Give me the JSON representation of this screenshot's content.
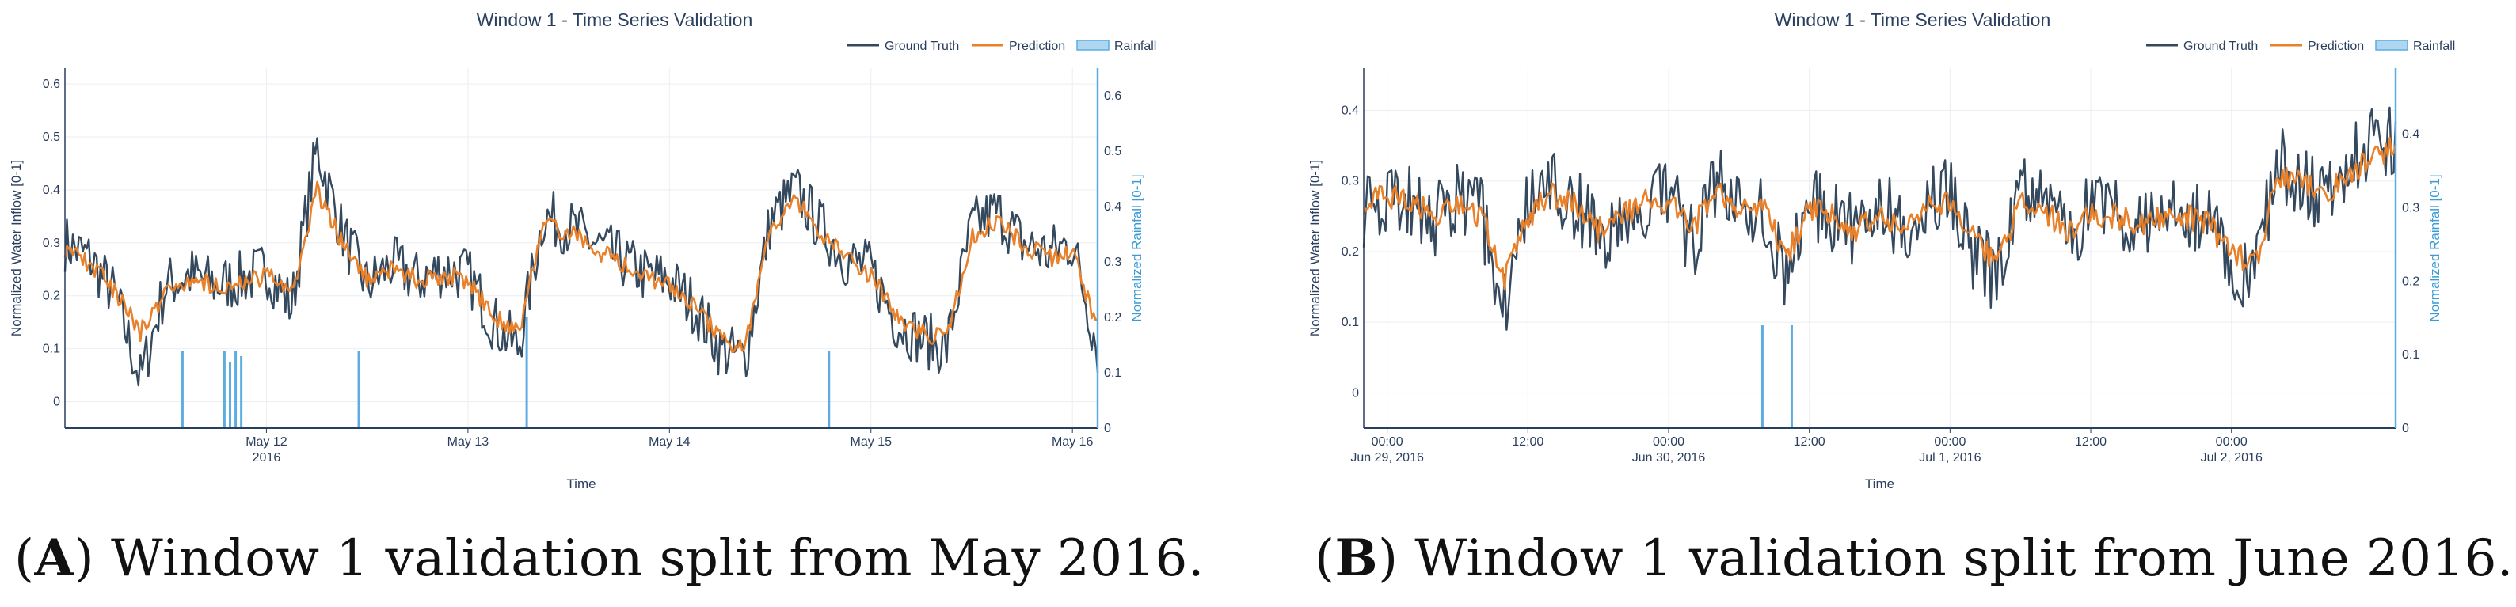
{
  "captions": [
    {
      "letter": "A",
      "text": ") Window 1 validation split from May 2016."
    },
    {
      "letter": "B",
      "text": ") Window 1 validation split from June 2016."
    }
  ],
  "colors": {
    "ground_truth": "#34495e",
    "prediction": "#e8812a",
    "rainfall": "#5dade2",
    "grid": "#ebeef3",
    "axis": "#2a3f5f"
  },
  "chart_data": [
    {
      "type": "line",
      "title": "Window 1 - Time Series Validation",
      "xlabel": "Time",
      "ylabel": "Normalized Water Inflow [0-1]",
      "y2label": "Normalized Rainfall [0-1]",
      "xlim": [
        "2016-05-11 00:00",
        "2016-05-16 03:00"
      ],
      "ylim": [
        -0.05,
        0.63
      ],
      "y2lim": [
        0,
        0.65
      ],
      "yticks": [
        "0",
        "0.1",
        "0.2",
        "0.3",
        "0.4",
        "0.5",
        "0.6"
      ],
      "y2ticks": [
        "0",
        "0.1",
        "0.2",
        "0.3",
        "0.4",
        "0.5",
        "0.6"
      ],
      "xticks": [
        {
          "x": "2016-05-12 00:00",
          "label": "May 12",
          "sub": "2016"
        },
        {
          "x": "2016-05-13 00:00",
          "label": "May 13",
          "sub": ""
        },
        {
          "x": "2016-05-14 00:00",
          "label": "May 14",
          "sub": ""
        },
        {
          "x": "2016-05-15 00:00",
          "label": "May 15",
          "sub": ""
        },
        {
          "x": "2016-05-16 00:00",
          "label": "May 16",
          "sub": ""
        }
      ],
      "legend": [
        "Ground Truth",
        "Prediction",
        "Rainfall"
      ],
      "legend_position": "top-right",
      "grid": true,
      "series": [
        {
          "name": "Ground Truth",
          "x": [
            "2016-05-11 00:00",
            "2016-05-11 03:00",
            "2016-05-11 06:00",
            "2016-05-11 09:00",
            "2016-05-11 12:00",
            "2016-05-11 15:00",
            "2016-05-11 18:00",
            "2016-05-11 21:00",
            "2016-05-12 00:00",
            "2016-05-12 03:00",
            "2016-05-12 06:00",
            "2016-05-12 09:00",
            "2016-05-12 12:00",
            "2016-05-12 15:00",
            "2016-05-12 18:00",
            "2016-05-12 21:00",
            "2016-05-13 00:00",
            "2016-05-13 03:00",
            "2016-05-13 06:00",
            "2016-05-13 09:00",
            "2016-05-13 12:00",
            "2016-05-13 15:00",
            "2016-05-13 18:00",
            "2016-05-13 21:00",
            "2016-05-14 00:00",
            "2016-05-14 03:00",
            "2016-05-14 06:00",
            "2016-05-14 09:00",
            "2016-05-14 12:00",
            "2016-05-14 15:00",
            "2016-05-14 18:00",
            "2016-05-14 21:00",
            "2016-05-15 00:00",
            "2016-05-15 03:00",
            "2016-05-15 06:00",
            "2016-05-15 09:00",
            "2016-05-15 12:00",
            "2016-05-15 15:00",
            "2016-05-15 18:00",
            "2016-05-15 21:00",
            "2016-05-16 00:00",
            "2016-05-16 03:00"
          ],
          "values": [
            0.3,
            0.27,
            0.2,
            0.04,
            0.22,
            0.24,
            0.22,
            0.23,
            0.25,
            0.18,
            0.48,
            0.32,
            0.22,
            0.26,
            0.23,
            0.25,
            0.24,
            0.15,
            0.1,
            0.35,
            0.33,
            0.3,
            0.27,
            0.24,
            0.23,
            0.18,
            0.1,
            0.08,
            0.34,
            0.4,
            0.33,
            0.27,
            0.25,
            0.15,
            0.12,
            0.1,
            0.33,
            0.36,
            0.3,
            0.28,
            0.3,
            0.1
          ]
        },
        {
          "name": "Prediction",
          "x": [
            "2016-05-11 00:00",
            "2016-05-11 03:00",
            "2016-05-11 06:00",
            "2016-05-11 09:00",
            "2016-05-11 12:00",
            "2016-05-11 15:00",
            "2016-05-11 18:00",
            "2016-05-11 21:00",
            "2016-05-12 00:00",
            "2016-05-12 03:00",
            "2016-05-12 06:00",
            "2016-05-12 09:00",
            "2016-05-12 12:00",
            "2016-05-12 15:00",
            "2016-05-12 18:00",
            "2016-05-12 21:00",
            "2016-05-13 00:00",
            "2016-05-13 03:00",
            "2016-05-13 06:00",
            "2016-05-13 09:00",
            "2016-05-13 12:00",
            "2016-05-13 15:00",
            "2016-05-13 18:00",
            "2016-05-13 21:00",
            "2016-05-14 00:00",
            "2016-05-14 03:00",
            "2016-05-14 06:00",
            "2016-05-14 09:00",
            "2016-05-14 12:00",
            "2016-05-14 15:00",
            "2016-05-14 18:00",
            "2016-05-14 21:00",
            "2016-05-15 00:00",
            "2016-05-15 03:00",
            "2016-05-15 06:00",
            "2016-05-15 09:00",
            "2016-05-15 12:00",
            "2016-05-15 15:00",
            "2016-05-15 18:00",
            "2016-05-15 21:00",
            "2016-05-16 00:00",
            "2016-05-16 03:00"
          ],
          "values": [
            0.29,
            0.26,
            0.21,
            0.13,
            0.21,
            0.23,
            0.22,
            0.22,
            0.24,
            0.2,
            0.4,
            0.3,
            0.23,
            0.25,
            0.23,
            0.24,
            0.23,
            0.16,
            0.13,
            0.33,
            0.32,
            0.29,
            0.26,
            0.24,
            0.22,
            0.18,
            0.12,
            0.1,
            0.32,
            0.38,
            0.32,
            0.27,
            0.24,
            0.16,
            0.13,
            0.12,
            0.31,
            0.34,
            0.3,
            0.27,
            0.28,
            0.14
          ]
        }
      ],
      "rainfall": {
        "name": "Rainfall",
        "x": [
          "2016-05-11 14:00",
          "2016-05-11 19:00",
          "2016-05-11 19:40",
          "2016-05-11 20:20",
          "2016-05-11 21:00",
          "2016-05-12 11:00",
          "2016-05-13 07:00",
          "2016-05-14 19:00"
        ],
        "values": [
          0.14,
          0.14,
          0.12,
          0.14,
          0.13,
          0.14,
          0.2,
          0.14
        ]
      }
    },
    {
      "type": "line",
      "title": "Window 1 - Time Series Validation",
      "xlabel": "Time",
      "ylabel": "Normalized Water Inflow [0-1]",
      "y2label": "Normalized Rainfall [0-1]",
      "xlim": [
        "2016-06-28 22:00",
        "2016-07-02 14:00"
      ],
      "ylim": [
        -0.05,
        0.46
      ],
      "y2lim": [
        0,
        0.49
      ],
      "yticks": [
        "0",
        "0.1",
        "0.2",
        "0.3",
        "0.4"
      ],
      "y2ticks": [
        "0",
        "0.1",
        "0.2",
        "0.3",
        "0.4"
      ],
      "xticks": [
        {
          "x": "2016-06-29 00:00",
          "label": "00:00",
          "sub": "Jun 29, 2016"
        },
        {
          "x": "2016-06-29 12:00",
          "label": "12:00",
          "sub": ""
        },
        {
          "x": "2016-06-30 00:00",
          "label": "00:00",
          "sub": "Jun 30, 2016"
        },
        {
          "x": "2016-06-30 12:00",
          "label": "12:00",
          "sub": ""
        },
        {
          "x": "2016-07-01 00:00",
          "label": "00:00",
          "sub": "Jul 1, 2016"
        },
        {
          "x": "2016-07-01 12:00",
          "label": "12:00",
          "sub": ""
        },
        {
          "x": "2016-07-02 00:00",
          "label": "00:00",
          "sub": "Jul 2, 2016"
        }
      ],
      "legend": [
        "Ground Truth",
        "Prediction",
        "Rainfall"
      ],
      "legend_position": "top-right",
      "grid": true,
      "series": [
        {
          "name": "Ground Truth",
          "x": [
            "2016-06-28 22:00",
            "2016-06-29 00:00",
            "2016-06-29 02:00",
            "2016-06-29 04:00",
            "2016-06-29 06:00",
            "2016-06-29 08:00",
            "2016-06-29 10:00",
            "2016-06-29 12:00",
            "2016-06-29 14:00",
            "2016-06-29 16:00",
            "2016-06-29 18:00",
            "2016-06-29 20:00",
            "2016-06-29 22:00",
            "2016-06-30 00:00",
            "2016-06-30 02:00",
            "2016-06-30 04:00",
            "2016-06-30 06:00",
            "2016-06-30 08:00",
            "2016-06-30 10:00",
            "2016-06-30 12:00",
            "2016-06-30 14:00",
            "2016-06-30 16:00",
            "2016-06-30 18:00",
            "2016-06-30 20:00",
            "2016-06-30 22:00",
            "2016-07-01 00:00",
            "2016-07-01 02:00",
            "2016-07-01 04:00",
            "2016-07-01 06:00",
            "2016-07-01 08:00",
            "2016-07-01 10:00",
            "2016-07-01 12:00",
            "2016-07-01 14:00",
            "2016-07-01 16:00",
            "2016-07-01 18:00",
            "2016-07-01 20:00",
            "2016-07-01 22:00",
            "2016-07-02 00:00",
            "2016-07-02 02:00",
            "2016-07-02 04:00",
            "2016-07-02 06:00",
            "2016-07-02 08:00",
            "2016-07-02 10:00",
            "2016-07-02 12:00",
            "2016-07-02 14:00"
          ],
          "values": [
            0.26,
            0.28,
            0.27,
            0.24,
            0.28,
            0.25,
            0.13,
            0.26,
            0.29,
            0.27,
            0.22,
            0.25,
            0.27,
            0.28,
            0.21,
            0.3,
            0.26,
            0.27,
            0.16,
            0.27,
            0.25,
            0.22,
            0.26,
            0.24,
            0.27,
            0.28,
            0.2,
            0.16,
            0.28,
            0.26,
            0.22,
            0.26,
            0.25,
            0.23,
            0.26,
            0.25,
            0.24,
            0.18,
            0.17,
            0.33,
            0.3,
            0.27,
            0.33,
            0.35,
            0.36
          ]
        },
        {
          "name": "Prediction",
          "x": [
            "2016-06-28 22:00",
            "2016-06-29 00:00",
            "2016-06-29 02:00",
            "2016-06-29 04:00",
            "2016-06-29 06:00",
            "2016-06-29 08:00",
            "2016-06-29 10:00",
            "2016-06-29 12:00",
            "2016-06-29 14:00",
            "2016-06-29 16:00",
            "2016-06-29 18:00",
            "2016-06-29 20:00",
            "2016-06-29 22:00",
            "2016-06-30 00:00",
            "2016-06-30 02:00",
            "2016-06-30 04:00",
            "2016-06-30 06:00",
            "2016-06-30 08:00",
            "2016-06-30 10:00",
            "2016-06-30 12:00",
            "2016-06-30 14:00",
            "2016-06-30 16:00",
            "2016-06-30 18:00",
            "2016-06-30 20:00",
            "2016-06-30 22:00",
            "2016-07-01 00:00",
            "2016-07-01 02:00",
            "2016-07-01 04:00",
            "2016-07-01 06:00",
            "2016-07-01 08:00",
            "2016-07-01 10:00",
            "2016-07-01 12:00",
            "2016-07-01 14:00",
            "2016-07-01 16:00",
            "2016-07-01 18:00",
            "2016-07-01 20:00",
            "2016-07-01 22:00",
            "2016-07-02 00:00",
            "2016-07-02 02:00",
            "2016-07-02 04:00",
            "2016-07-02 06:00",
            "2016-07-02 08:00",
            "2016-07-02 10:00",
            "2016-07-02 12:00",
            "2016-07-02 14:00"
          ],
          "values": [
            0.27,
            0.28,
            0.27,
            0.25,
            0.27,
            0.25,
            0.16,
            0.25,
            0.28,
            0.27,
            0.23,
            0.25,
            0.27,
            0.27,
            0.23,
            0.29,
            0.26,
            0.27,
            0.19,
            0.26,
            0.25,
            0.23,
            0.25,
            0.24,
            0.26,
            0.27,
            0.22,
            0.18,
            0.27,
            0.26,
            0.23,
            0.25,
            0.25,
            0.24,
            0.25,
            0.25,
            0.24,
            0.2,
            0.18,
            0.31,
            0.3,
            0.28,
            0.31,
            0.33,
            0.35
          ]
        }
      ],
      "rainfall": {
        "name": "Rainfall",
        "x": [
          "2016-06-30 08:00",
          "2016-06-30 10:30"
        ],
        "values": [
          0.14,
          0.14
        ]
      }
    }
  ]
}
